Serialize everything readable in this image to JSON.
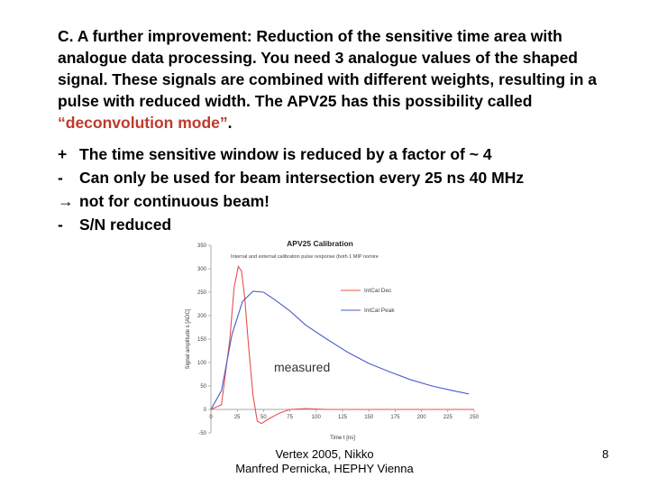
{
  "paragraph": {
    "text_before": "C. A further improvement: Reduction of the sensitive time area with analogue data processing. You need 3 analogue values of the shaped signal. These signals are combined with different weights, resulting in a pulse with reduced width. The APV25 has this possibility called ",
    "highlight": "“deconvolution mode”",
    "text_after": ".",
    "highlight_color": "#c0392b"
  },
  "bullets": [
    {
      "mark": "+",
      "text": "The time sensitive window is reduced by a factor of ~ 4"
    },
    {
      "mark": "-",
      "text": "Can only be used for beam intersection every 25 ns  40 MHz"
    },
    {
      "mark": "→",
      "text": "not for continuous beam!"
    },
    {
      "mark": "-",
      "text": "S/N reduced"
    }
  ],
  "chart_data": {
    "type": "line",
    "title": "APV25 Calibration",
    "subtitle": "Internal and external calibration pulse response (both 1 MIP nomire",
    "xlabel": "Time t [ns]",
    "ylabel": "Signal amplitude s [ADC]",
    "xlim": [
      0,
      250
    ],
    "ylim": [
      -50,
      350
    ],
    "xticks": [
      0,
      25,
      50,
      75,
      100,
      125,
      150,
      175,
      200,
      225,
      250
    ],
    "yticks": [
      -50,
      0,
      50,
      100,
      150,
      200,
      250,
      300,
      350
    ],
    "annotation": "measured",
    "legend_position": "right",
    "series": [
      {
        "name": "IntCal Dec",
        "color": "#e8504a",
        "x": [
          0,
          10,
          18,
          22,
          26,
          29,
          32,
          36,
          40,
          44,
          48,
          55,
          65,
          75,
          90,
          110,
          140,
          180,
          220,
          250
        ],
        "y": [
          0,
          10,
          150,
          260,
          305,
          295,
          240,
          130,
          30,
          -25,
          -30,
          -20,
          -8,
          0,
          2,
          0,
          0,
          0,
          0,
          0
        ]
      },
      {
        "name": "IntCal Peak",
        "color": "#4a5ccc",
        "x": [
          0,
          10,
          20,
          30,
          40,
          50,
          60,
          75,
          90,
          110,
          130,
          150,
          170,
          190,
          210,
          230,
          245
        ],
        "y": [
          0,
          40,
          160,
          230,
          252,
          250,
          235,
          210,
          180,
          150,
          122,
          98,
          80,
          63,
          50,
          40,
          33
        ]
      }
    ]
  },
  "footer": {
    "line1": "Vertex 2005, Nikko",
    "line2": "Manfred Pernicka, HEPHY Vienna",
    "page_number": "8"
  }
}
